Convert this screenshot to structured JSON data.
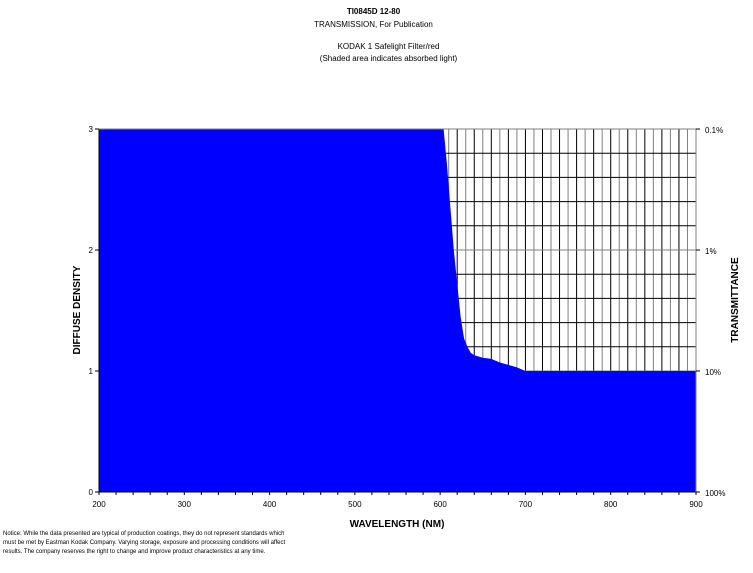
{
  "header": {
    "code": "TI0845D 12-80",
    "subtitle": "TRANSMISSION, For Publication",
    "product": "KODAK 1 Safelight Filter/red",
    "note": "(Shaded area indicates absorbed light)"
  },
  "notice": {
    "line1": "Notice: While the data presented are typical of production coatings, they do not represent standards which",
    "line2": "must be met by Eastman Kodak Company.  Varying storage, exposure and processing conditions will affect",
    "line3": "results.  The company reserves the right to change and improve product characteristics at any time."
  },
  "colors": {
    "fill": "#0000FF",
    "grid_major": "#000000",
    "grid_minor": "#808080"
  },
  "chart_data": {
    "type": "area",
    "title": "KODAK 1 Safelight Filter/red",
    "subtitle": "(Shaded area indicates absorbed light)",
    "xlabel": "WAVELENGTH (NM)",
    "ylabel": "DIFFUSE DENSITY",
    "y2label": "TRANSMITTANCE",
    "xlim": [
      200,
      900
    ],
    "ylim": [
      0,
      3
    ],
    "x_ticks": [
      200,
      300,
      400,
      500,
      600,
      700,
      800,
      900
    ],
    "y_ticks": [
      0,
      1,
      2,
      3
    ],
    "y2_ticks": [
      {
        "density": 3,
        "label": "0.1%"
      },
      {
        "density": 2,
        "label": "1%"
      },
      {
        "density": 1,
        "label": "10%"
      },
      {
        "density": 0,
        "label": "100%"
      }
    ],
    "grid": "shown only in unshaded area (10 nm x 0.2 density)",
    "series": [
      {
        "name": "Diffuse Density",
        "x": [
          200,
          300,
          400,
          500,
          600,
          604,
          608,
          612,
          616,
          620,
          624,
          628,
          632,
          636,
          640,
          650,
          660,
          670,
          680,
          690,
          700,
          750,
          800,
          850,
          900
        ],
        "values": [
          3.0,
          3.0,
          3.0,
          3.0,
          3.0,
          3.0,
          2.7,
          2.35,
          2.0,
          1.72,
          1.45,
          1.27,
          1.2,
          1.15,
          1.13,
          1.11,
          1.1,
          1.07,
          1.05,
          1.03,
          1.0,
          1.0,
          1.0,
          1.0,
          1.0
        ]
      }
    ]
  }
}
